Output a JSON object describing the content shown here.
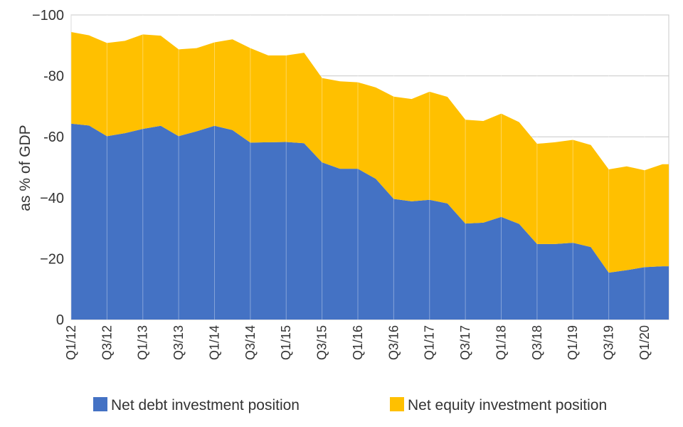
{
  "chart_data": {
    "type": "area",
    "stacked": true,
    "title": "",
    "xlabel": "",
    "ylabel": "as % of GDP",
    "ylim": [
      0,
      -100
    ],
    "y_ticks": [
      0,
      -20,
      -40,
      -60,
      -80,
      -100
    ],
    "y_tick_labels": [
      "0",
      "−20",
      "−40",
      "-60",
      "-80",
      "−100"
    ],
    "grid": true,
    "legend_position": "bottom",
    "x": [
      "Q1/12",
      "Q2/12",
      "Q3/12",
      "Q4/12",
      "Q1/13",
      "Q2/13",
      "Q3/13",
      "Q4/13",
      "Q1/14",
      "Q2/14",
      "Q3/14",
      "Q4/14",
      "Q1/15",
      "Q2/15",
      "Q3/15",
      "Q4/15",
      "Q1/16",
      "Q2/16",
      "Q3/16",
      "Q4/16",
      "Q1/17",
      "Q2/17",
      "Q3/17",
      "Q4/17",
      "Q1/18",
      "Q2/18",
      "Q3/18",
      "Q4/18",
      "Q1/19",
      "Q2/19",
      "Q3/19",
      "Q4/19",
      "Q1/20",
      "Q2/20"
    ],
    "x_tick_labels": [
      "Q1/12",
      "Q3/12",
      "Q1/13",
      "Q3/13",
      "Q1/14",
      "Q3/14",
      "Q1/15",
      "Q3/15",
      "Q1/16",
      "Q3/16",
      "Q1/17",
      "Q3/17",
      "Q1/18",
      "Q3/18",
      "Q1/19",
      "Q3/19",
      "Q1/20"
    ],
    "series": [
      {
        "name": "Net debt investment position",
        "color": "#4472c4",
        "values": [
          -64.3,
          -63.7,
          -60.2,
          -61.2,
          -62.6,
          -63.6,
          -60.2,
          -61.8,
          -63.6,
          -62.2,
          -58.1,
          -58.2,
          -58.3,
          -57.9,
          -51.6,
          -49.5,
          -49.5,
          -46.2,
          -39.6,
          -38.8,
          -39.3,
          -38.1,
          -31.5,
          -31.8,
          -33.7,
          -31.4,
          -24.8,
          -24.8,
          -25.2,
          -23.8,
          -15.4,
          -16.2,
          -17.2,
          -17.5
        ]
      },
      {
        "name": "Net equity investment position",
        "color": "#ffc000",
        "values": [
          -30.1,
          -29.6,
          -30.6,
          -30.3,
          -31.0,
          -29.6,
          -28.5,
          -27.3,
          -27.4,
          -29.8,
          -31.0,
          -28.5,
          -28.4,
          -29.7,
          -27.7,
          -28.7,
          -28.4,
          -30.0,
          -33.6,
          -33.6,
          -35.5,
          -35.0,
          -34.1,
          -33.4,
          -33.9,
          -33.4,
          -32.9,
          -33.4,
          -33.8,
          -33.5,
          -33.9,
          -34.1,
          -31.8,
          -33.5
        ]
      }
    ]
  }
}
